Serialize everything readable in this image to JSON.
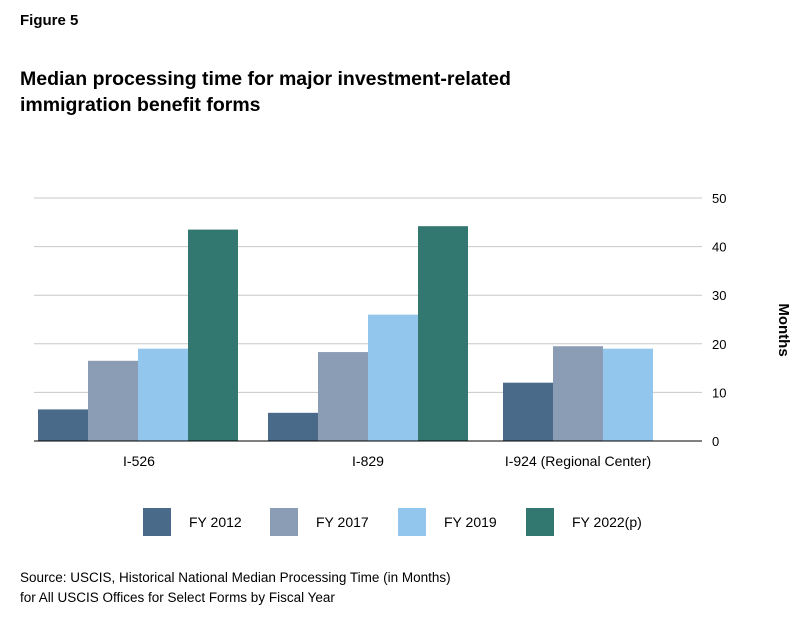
{
  "figure_label": "Figure 5",
  "title": "Median processing time for major investment-related immigration benefit forms",
  "source_line1": "Source: USCIS, Historical National Median Processing Time (in Months)",
  "source_line2": "for All USCIS Offices for Select Forms by Fiscal Year",
  "colors": {
    "grid": "#c8c8c8",
    "axis": "#000000"
  },
  "chart_data": {
    "type": "bar",
    "title": "Median processing time for major investment-related immigration benefit forms",
    "xlabel": "",
    "ylabel": "Months",
    "ylim": [
      0,
      50
    ],
    "yticks": [
      0,
      10,
      20,
      30,
      40,
      50
    ],
    "grid": true,
    "legend_position": "bottom",
    "categories": [
      "I-526",
      "I-829",
      "I-924 (Regional Center)"
    ],
    "series": [
      {
        "name": "FY 2012",
        "color": "#4a6a8a",
        "values": [
          6.5,
          5.8,
          12.0
        ]
      },
      {
        "name": "FY 2017",
        "color": "#8a9db5",
        "values": [
          16.5,
          18.3,
          19.5
        ]
      },
      {
        "name": "FY 2019",
        "color": "#93c6ec",
        "values": [
          19.0,
          26.0,
          19.0
        ]
      },
      {
        "name": "FY 2022(p)",
        "color": "#327871",
        "values": [
          43.5,
          44.2,
          null
        ]
      }
    ]
  }
}
